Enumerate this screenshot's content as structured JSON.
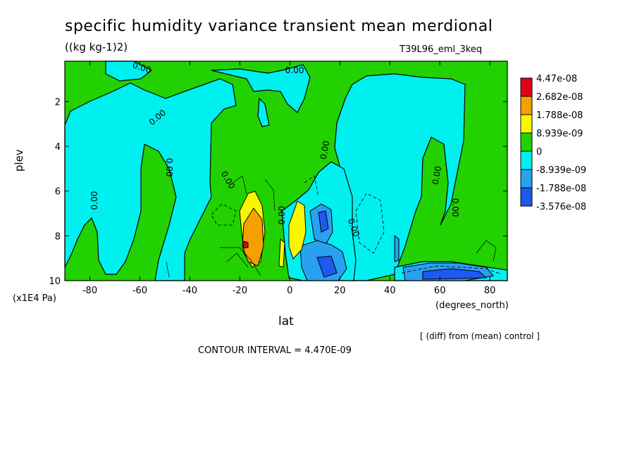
{
  "chart_data": {
    "type": "heatmap",
    "title": "specific humidity variance transient mean merdional",
    "units": "((kg kg-1)2)",
    "experiment": "T39L96_eml_3keq",
    "xlabel": "lat",
    "x_units": "(degrees_north)",
    "ylabel": "plev",
    "y_units": "(x1E4 Pa)",
    "x_range": [
      -90,
      87
    ],
    "y_range": [
      0.2,
      10
    ],
    "y_inverted": true,
    "x_ticks": [
      -80,
      -60,
      -40,
      -20,
      0,
      20,
      40,
      60,
      80
    ],
    "x_tick_labels": [
      "-80",
      "-60",
      "-40",
      "-20",
      "0",
      "20",
      "40",
      "60",
      "80"
    ],
    "y_ticks": [
      2,
      4,
      6,
      8,
      10
    ],
    "y_tick_labels": [
      "2",
      "4",
      "6",
      "8",
      "10"
    ],
    "colorbar": {
      "labels": [
        "4.47e-08",
        "2.682e-08",
        "1.788e-08",
        "8.939e-09",
        "0",
        "-8.939e-09",
        "-1.788e-08",
        "-3.576e-08"
      ],
      "colors": [
        "#e0001c",
        "#f5a000",
        "#f7f700",
        "#22d200",
        "#00f0f0",
        "#2aa0f0",
        "#1e5af0"
      ]
    },
    "contour_labels": [
      "0.00",
      "0.00",
      "0.00",
      "0.00",
      "0.00",
      "0.00",
      "0.00",
      "0.00",
      "0.00",
      "0.00",
      "0.00"
    ],
    "contour_interval_text": "CONTOUR INTERVAL = 4.470E-09",
    "note": "[ (diff) from (mean) control ]",
    "colors": {
      "green": "#22d200",
      "cyan": "#00f0f0",
      "light_blue": "#2aa0f0",
      "blue": "#1e5af0",
      "yellow": "#f7f700",
      "orange": "#f5a000",
      "red": "#e0001c"
    }
  }
}
